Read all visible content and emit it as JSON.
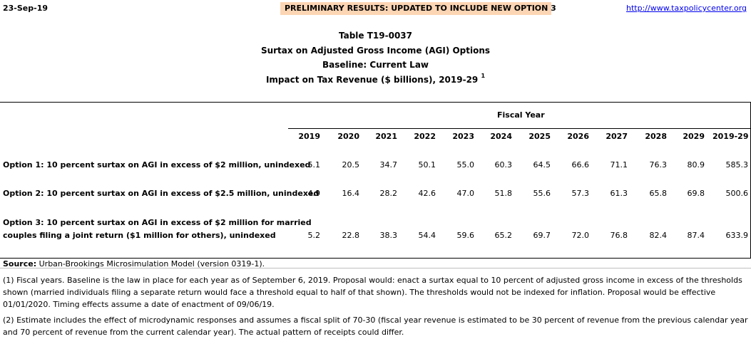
{
  "header": {
    "date": "23-Sep-19",
    "banner": "PRELIMINARY RESULTS: UPDATED TO INCLUDE NEW OPTION 3",
    "url": "http://www.taxpolicycenter.org"
  },
  "titles": {
    "table_id": "Table T19-0037",
    "subtitle": "Surtax on Adjusted Gross Income (AGI) Options",
    "baseline": "Baseline: Current Law",
    "impact": "Impact on Tax Revenue ($ billions), 2019-29",
    "impact_note": "1"
  },
  "table": {
    "group_header": "Fiscal Year",
    "columns": [
      "2019",
      "2020",
      "2021",
      "2022",
      "2023",
      "2024",
      "2025",
      "2026",
      "2027",
      "2028",
      "2029",
      "2019-29"
    ],
    "rows": [
      {
        "label": "Option 1: 10 percent surtax on AGI in excess of $2 million, unindexed",
        "values": [
          "5.1",
          "20.5",
          "34.7",
          "50.1",
          "55.0",
          "60.3",
          "64.5",
          "66.6",
          "71.1",
          "76.3",
          "80.9",
          "585.3"
        ]
      },
      {
        "label": "Option 2: 10 percent surtax on AGI in excess of $2.5 million, unindexed",
        "values": [
          "4.9",
          "16.4",
          "28.2",
          "42.6",
          "47.0",
          "51.8",
          "55.6",
          "57.3",
          "61.3",
          "65.8",
          "69.8",
          "500.6"
        ]
      },
      {
        "label_line1": "Option 3: 10 percent surtax on AGI in excess of $2 million for married",
        "label_line2": "couples filing a joint return ($1 million for others), unindexed",
        "values": [
          "5.2",
          "22.8",
          "38.3",
          "54.4",
          "59.6",
          "65.2",
          "69.7",
          "72.0",
          "76.8",
          "82.4",
          "87.4",
          "633.9"
        ]
      }
    ]
  },
  "footer": {
    "source_label": "Source:",
    "source_text": "Urban-Brookings Microsimulation Model (version 0319-1).",
    "note1": "(1) Fiscal years. Baseline is the law in place for each year as of September 6, 2019. Proposal would: enact a surtax equal to 10 percent of adjusted gross income in excess of the thresholds shown (married individuals filing a separate return would face a threshold equal to half of that shown). The thresholds would not be indexed for inflation. Proposal would be effective 01/01/2020. Timing effects assume a date of enactment of 09/06/19.",
    "note2": "(2) Estimate includes the effect of microdynamic responses and assumes a fiscal split of 70-30 (fiscal year revenue is estimated to be 30 percent of revenue from the previous calendar year and 70 percent of revenue from the current calendar year). The actual pattern of receipts could differ."
  }
}
